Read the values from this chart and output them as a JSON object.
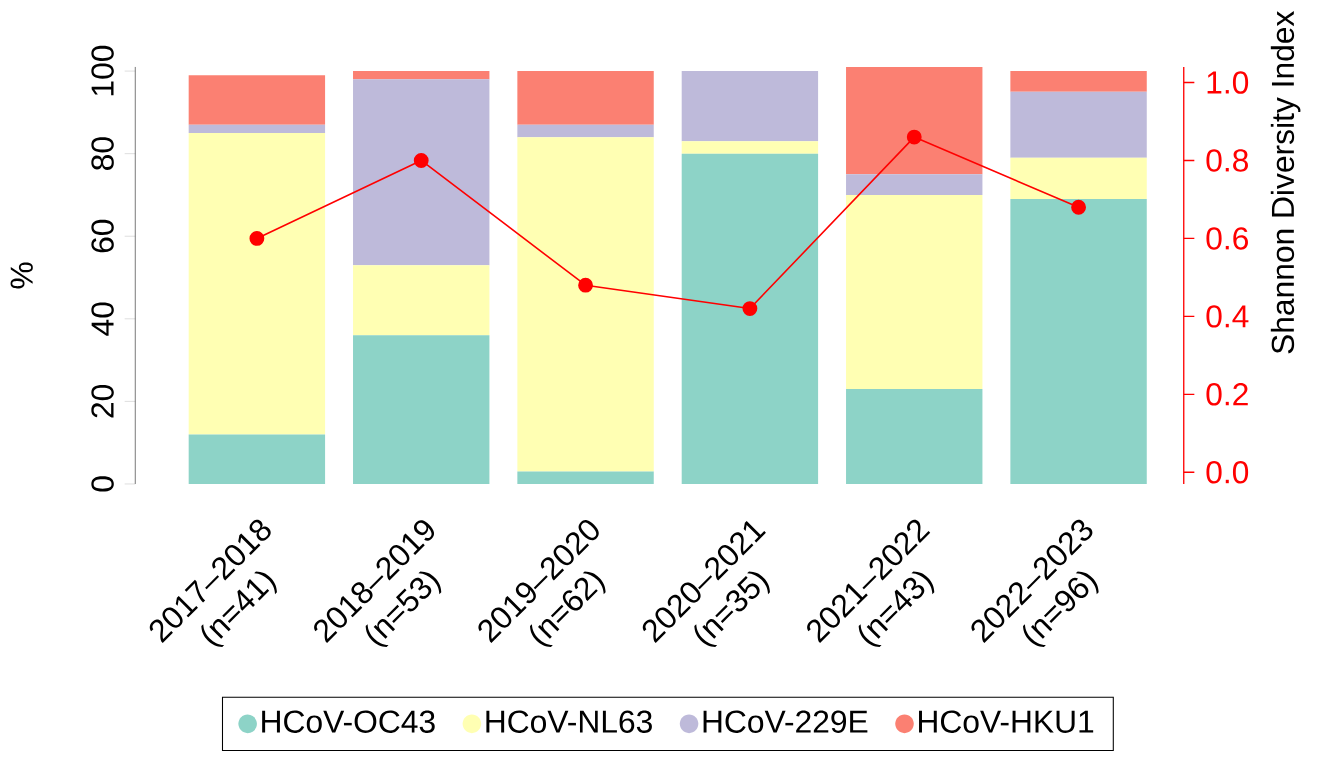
{
  "chart_data": {
    "type": "bar",
    "stacked": true,
    "ylabel": "%",
    "y2label": "Shannon Diversity Index",
    "categories": [
      "2017–2018 (n=41)",
      "2018–2019 (n=53)",
      "2019–2020 (n=62)",
      "2020–2021 (n=35)",
      "2021–2022 (n=43)",
      "2022–2023 (n=96)"
    ],
    "ylim": [
      0,
      101
    ],
    "yticks": [
      0,
      20,
      40,
      60,
      80,
      100
    ],
    "y2lim": [
      -0.03,
      1.04
    ],
    "y2ticks": [
      {
        "value": 0,
        "label": "0.0"
      },
      0.2,
      0.4,
      0.6,
      0.8,
      {
        "value": 1,
        "label": "1.0"
      }
    ],
    "legend": "bottom",
    "series": [
      {
        "name": "HCoV-OC43",
        "color": "#8dd3c7",
        "values": [
          12,
          36,
          3,
          80,
          23,
          69
        ]
      },
      {
        "name": "HCoV-NL63",
        "color": "#ffffb3",
        "values": [
          73,
          17,
          81,
          3,
          47,
          10
        ]
      },
      {
        "name": "HCoV-229E",
        "color": "#bebada",
        "values": [
          2,
          45,
          3,
          17,
          5,
          16
        ]
      },
      {
        "name": "HCoV-HKU1",
        "color": "#fb8072",
        "values": [
          12,
          2,
          13,
          0,
          26,
          5
        ]
      },
      {
        "type": "line",
        "axis": "y2",
        "color": "#ff0000",
        "marker": "circle",
        "line_style": "solid",
        "values": [
          0.6,
          0.8,
          0.48,
          0.42,
          0.86,
          0.68
        ]
      }
    ]
  }
}
